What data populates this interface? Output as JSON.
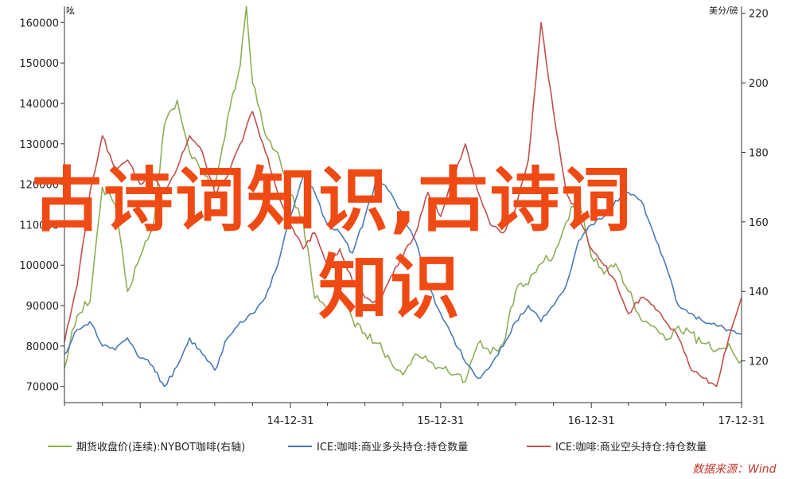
{
  "chart_data": {
    "type": "line",
    "left_axis_unit": "吆",
    "right_axis_unit": "美分/磅",
    "y_left": {
      "ticks": [
        70000,
        80000,
        90000,
        100000,
        110000,
        120000,
        130000,
        140000,
        150000,
        160000
      ],
      "range": [
        66000,
        164000
      ]
    },
    "y_right": {
      "ticks": [
        120,
        140,
        160,
        180,
        200,
        220
      ],
      "range": [
        108,
        222
      ]
    },
    "x_tick_labels": [
      "14-12-31",
      "15-12-31",
      "16-12-31",
      "17-12-31"
    ],
    "x_range": [
      "2013-06-30",
      "2017-12-31"
    ],
    "series": [
      {
        "name": "期货收盘价(连续):NYBOT咖啡(右轴)",
        "axis": "right",
        "color": "#8fae55",
        "points": [
          [
            "2013-06-30",
            118
          ],
          [
            "2013-07-31",
            133
          ],
          [
            "2013-08-31",
            137
          ],
          [
            "2013-09-30",
            170
          ],
          [
            "2013-10-31",
            165
          ],
          [
            "2013-11-30",
            140
          ],
          [
            "2013-12-31",
            150
          ],
          [
            "2014-01-31",
            158
          ],
          [
            "2014-02-28",
            188
          ],
          [
            "2014-03-31",
            195
          ],
          [
            "2014-04-30",
            180
          ],
          [
            "2014-05-31",
            175
          ],
          [
            "2014-06-30",
            170
          ],
          [
            "2014-07-31",
            190
          ],
          [
            "2014-08-31",
            205
          ],
          [
            "2014-09-15",
            222
          ],
          [
            "2014-09-30",
            200
          ],
          [
            "2014-10-31",
            185
          ],
          [
            "2014-11-30",
            180
          ],
          [
            "2014-12-31",
            168
          ],
          [
            "2015-01-31",
            160
          ],
          [
            "2015-02-28",
            138
          ],
          [
            "2015-03-31",
            135
          ],
          [
            "2015-04-30",
            140
          ],
          [
            "2015-05-31",
            132
          ],
          [
            "2015-06-30",
            128
          ],
          [
            "2015-07-31",
            125
          ],
          [
            "2015-08-31",
            120
          ],
          [
            "2015-09-30",
            116
          ],
          [
            "2015-10-31",
            122
          ],
          [
            "2015-11-30",
            120
          ],
          [
            "2015-12-31",
            118
          ],
          [
            "2016-01-31",
            116
          ],
          [
            "2016-02-29",
            114
          ],
          [
            "2016-03-31",
            125
          ],
          [
            "2016-04-30",
            122
          ],
          [
            "2016-05-31",
            125
          ],
          [
            "2016-06-30",
            140
          ],
          [
            "2016-07-31",
            142
          ],
          [
            "2016-08-31",
            148
          ],
          [
            "2016-09-30",
            150
          ],
          [
            "2016-10-31",
            160
          ],
          [
            "2016-11-30",
            168
          ],
          [
            "2016-12-31",
            150
          ],
          [
            "2017-01-31",
            145
          ],
          [
            "2017-02-28",
            148
          ],
          [
            "2017-03-31",
            140
          ],
          [
            "2017-04-30",
            132
          ],
          [
            "2017-05-31",
            130
          ],
          [
            "2017-06-30",
            126
          ],
          [
            "2017-07-31",
            130
          ],
          [
            "2017-08-31",
            128
          ],
          [
            "2017-09-30",
            125
          ],
          [
            "2017-10-31",
            123
          ],
          [
            "2017-11-30",
            125
          ],
          [
            "2017-12-31",
            120
          ]
        ]
      },
      {
        "name": "ICE:咖啡:商业多头持仓:持仓数量",
        "axis": "left",
        "color": "#4a7ab5",
        "points": [
          [
            "2013-06-30",
            78000
          ],
          [
            "2013-07-31",
            84000
          ],
          [
            "2013-08-31",
            86000
          ],
          [
            "2013-09-30",
            80000
          ],
          [
            "2013-10-31",
            79000
          ],
          [
            "2013-11-30",
            82000
          ],
          [
            "2013-12-31",
            77000
          ],
          [
            "2014-01-31",
            75000
          ],
          [
            "2014-02-28",
            70000
          ],
          [
            "2014-03-31",
            75000
          ],
          [
            "2014-04-30",
            82000
          ],
          [
            "2014-05-31",
            78000
          ],
          [
            "2014-06-30",
            74000
          ],
          [
            "2014-07-31",
            82000
          ],
          [
            "2014-08-31",
            86000
          ],
          [
            "2014-09-30",
            88000
          ],
          [
            "2014-10-31",
            92000
          ],
          [
            "2014-11-30",
            100000
          ],
          [
            "2014-12-31",
            112000
          ],
          [
            "2015-01-31",
            122000
          ],
          [
            "2015-02-28",
            118000
          ],
          [
            "2015-03-31",
            110000
          ],
          [
            "2015-04-30",
            108000
          ],
          [
            "2015-05-31",
            103000
          ],
          [
            "2015-06-30",
            112000
          ],
          [
            "2015-07-31",
            122000
          ],
          [
            "2015-08-31",
            118000
          ],
          [
            "2015-09-30",
            112000
          ],
          [
            "2015-10-31",
            106000
          ],
          [
            "2015-11-30",
            95000
          ],
          [
            "2015-12-31",
            88000
          ],
          [
            "2016-01-31",
            82000
          ],
          [
            "2016-02-29",
            76000
          ],
          [
            "2016-03-31",
            72000
          ],
          [
            "2016-04-30",
            75000
          ],
          [
            "2016-05-31",
            80000
          ],
          [
            "2016-06-30",
            86000
          ],
          [
            "2016-07-31",
            90000
          ],
          [
            "2016-08-31",
            86000
          ],
          [
            "2016-09-30",
            90000
          ],
          [
            "2016-10-31",
            95000
          ],
          [
            "2016-11-30",
            106000
          ],
          [
            "2016-12-31",
            110000
          ],
          [
            "2017-01-31",
            112000
          ],
          [
            "2017-02-28",
            116000
          ],
          [
            "2017-03-31",
            118000
          ],
          [
            "2017-04-30",
            116000
          ],
          [
            "2017-05-31",
            108000
          ],
          [
            "2017-06-30",
            100000
          ],
          [
            "2017-07-31",
            90000
          ],
          [
            "2017-08-31",
            88000
          ],
          [
            "2017-09-30",
            86000
          ],
          [
            "2017-10-31",
            85000
          ],
          [
            "2017-11-30",
            84000
          ],
          [
            "2017-12-31",
            83000
          ]
        ]
      },
      {
        "name": "ICE:咖啡:商业空头持仓:持仓数量",
        "axis": "left",
        "color": "#c0504d",
        "points": [
          [
            "2013-06-30",
            81000
          ],
          [
            "2013-07-31",
            95000
          ],
          [
            "2013-08-31",
            118000
          ],
          [
            "2013-09-30",
            132000
          ],
          [
            "2013-10-31",
            124000
          ],
          [
            "2013-11-30",
            126000
          ],
          [
            "2013-12-31",
            120000
          ],
          [
            "2014-01-31",
            122000
          ],
          [
            "2014-02-28",
            118000
          ],
          [
            "2014-03-31",
            124000
          ],
          [
            "2014-04-30",
            132000
          ],
          [
            "2014-05-31",
            128000
          ],
          [
            "2014-06-30",
            118000
          ],
          [
            "2014-07-31",
            122000
          ],
          [
            "2014-08-31",
            130000
          ],
          [
            "2014-09-30",
            138000
          ],
          [
            "2014-10-31",
            128000
          ],
          [
            "2014-11-30",
            118000
          ],
          [
            "2014-12-31",
            110000
          ],
          [
            "2015-01-31",
            104000
          ],
          [
            "2015-02-28",
            108000
          ],
          [
            "2015-03-31",
            100000
          ],
          [
            "2015-04-30",
            104000
          ],
          [
            "2015-05-31",
            96000
          ],
          [
            "2015-06-30",
            92000
          ],
          [
            "2015-07-31",
            90000
          ],
          [
            "2015-08-31",
            97000
          ],
          [
            "2015-09-30",
            102000
          ],
          [
            "2015-10-31",
            108000
          ],
          [
            "2015-11-30",
            118000
          ],
          [
            "2015-12-31",
            112000
          ],
          [
            "2016-01-31",
            122000
          ],
          [
            "2016-02-29",
            130000
          ],
          [
            "2016-03-31",
            118000
          ],
          [
            "2016-04-30",
            110000
          ],
          [
            "2016-05-31",
            108000
          ],
          [
            "2016-06-30",
            114000
          ],
          [
            "2016-07-31",
            126000
          ],
          [
            "2016-08-31",
            160000
          ],
          [
            "2016-09-30",
            138000
          ],
          [
            "2016-10-31",
            118000
          ],
          [
            "2016-11-30",
            112000
          ],
          [
            "2016-12-31",
            104000
          ],
          [
            "2017-01-31",
            100000
          ],
          [
            "2017-02-28",
            96000
          ],
          [
            "2017-03-31",
            88000
          ],
          [
            "2017-04-30",
            92000
          ],
          [
            "2017-05-31",
            90000
          ],
          [
            "2017-06-30",
            86000
          ],
          [
            "2017-07-31",
            82000
          ],
          [
            "2017-08-31",
            74000
          ],
          [
            "2017-09-30",
            72000
          ],
          [
            "2017-10-31",
            70000
          ],
          [
            "2017-11-30",
            82000
          ],
          [
            "2017-12-31",
            92000
          ]
        ]
      }
    ],
    "legend_position": "bottom",
    "grid": false,
    "source": "数据来源：Wind"
  },
  "watermark": {
    "line1": "古诗词知识,古诗词",
    "line2": "知识"
  }
}
